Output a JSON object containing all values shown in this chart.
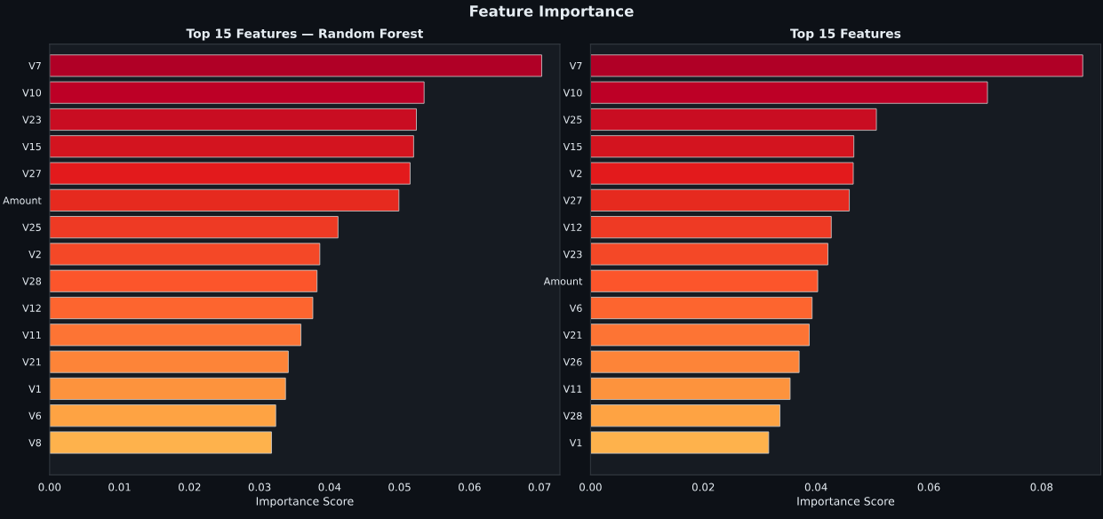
{
  "chart_data": [
    {
      "type": "bar",
      "orientation": "horizontal",
      "title": "Top 15 Features — Random Forest",
      "xlabel": "Importance Score",
      "annotations": [
        "Feature Importance"
      ],
      "categories": [
        "V7",
        "V10",
        "V23",
        "V15",
        "V27",
        "Amount",
        "V25",
        "V2",
        "V28",
        "V12",
        "V11",
        "V21",
        "V1",
        "V6",
        "V8"
      ],
      "values": [
        0.0703,
        0.0535,
        0.0524,
        0.052,
        0.0515,
        0.0499,
        0.0412,
        0.0386,
        0.0382,
        0.0376,
        0.0359,
        0.0341,
        0.0337,
        0.0323,
        0.0317
      ],
      "colors": [
        "#b00026",
        "#bd0026",
        "#c90d22",
        "#d3141f",
        "#e31a1c",
        "#e62a1f",
        "#ee3a24",
        "#f44827",
        "#fc552b",
        "#fd652f",
        "#fd7434",
        "#fd8438",
        "#fd933d",
        "#fea343",
        "#feb24c"
      ],
      "xlim": [
        0,
        0.0729
      ],
      "xticks": [
        {
          "value": 0,
          "label": "0.00"
        },
        {
          "value": 0.01,
          "label": "0.01"
        },
        {
          "value": 0.02,
          "label": "0.02"
        },
        {
          "value": 0.03,
          "label": "0.03"
        },
        {
          "value": 0.04,
          "label": "0.04"
        },
        {
          "value": 0.05,
          "label": "0.05"
        },
        {
          "value": 0.06,
          "label": "0.06"
        },
        {
          "value": 0.07,
          "label": "0.07"
        }
      ]
    },
    {
      "type": "bar",
      "orientation": "horizontal",
      "title": "Top 15 Features",
      "xlabel": "Importance Score",
      "categories": [
        "V7",
        "V10",
        "V25",
        "V15",
        "V2",
        "V27",
        "V12",
        "V23",
        "Amount",
        "V6",
        "V21",
        "V26",
        "V11",
        "V28",
        "V1"
      ],
      "values": [
        0.0873,
        0.0704,
        0.0507,
        0.0467,
        0.0466,
        0.0459,
        0.0427,
        0.0421,
        0.0403,
        0.0393,
        0.0388,
        0.037,
        0.0354,
        0.0336,
        0.0316
      ],
      "colors": [
        "#b00026",
        "#bd0026",
        "#c90d22",
        "#d3141f",
        "#e31a1c",
        "#e62a1f",
        "#ee3a24",
        "#f44827",
        "#fc552b",
        "#fd652f",
        "#fd7434",
        "#fd8438",
        "#fd933d",
        "#fea343",
        "#feb24c"
      ],
      "xlim": [
        0,
        0.0905
      ],
      "xticks": [
        {
          "value": 0,
          "label": "0.00"
        },
        {
          "value": 0.02,
          "label": "0.02"
        },
        {
          "value": 0.04,
          "label": "0.04"
        },
        {
          "value": 0.06,
          "label": "0.06"
        },
        {
          "value": 0.08,
          "label": "0.08"
        }
      ]
    }
  ]
}
